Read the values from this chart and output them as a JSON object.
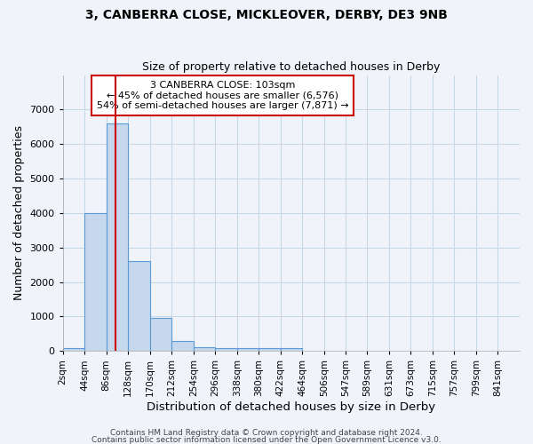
{
  "title1": "3, CANBERRA CLOSE, MICKLEOVER, DERBY, DE3 9NB",
  "title2": "Size of property relative to detached houses in Derby",
  "xlabel": "Distribution of detached houses by size in Derby",
  "ylabel": "Number of detached properties",
  "annotation_line1": "3 CANBERRA CLOSE: 103sqm",
  "annotation_line2": "← 45% of detached houses are smaller (6,576)",
  "annotation_line3": "54% of semi-detached houses are larger (7,871) →",
  "property_size_sqm": 103,
  "bin_edges": [
    2,
    44,
    86,
    128,
    170,
    212,
    254,
    296,
    338,
    380,
    422,
    464,
    506,
    547,
    589,
    631,
    673,
    715,
    757,
    799,
    841
  ],
  "bin_heights": [
    75,
    4000,
    6600,
    2620,
    960,
    300,
    115,
    80,
    80,
    90,
    90,
    0,
    0,
    0,
    0,
    0,
    0,
    0,
    0,
    0
  ],
  "bar_color": "#c5d8ed",
  "bar_edgecolor": "#5b9bd5",
  "red_line_color": "#cc0000",
  "background_color": "#f0f4fa",
  "grid_color": "#c8d8e8",
  "annotation_box_edgecolor": "#cc0000",
  "annotation_box_facecolor": "#ffffff",
  "footer_line1": "Contains HM Land Registry data © Crown copyright and database right 2024.",
  "footer_line2": "Contains public sector information licensed under the Open Government Licence v3.0.",
  "ylim": [
    0,
    8000
  ],
  "yticks": [
    0,
    1000,
    2000,
    3000,
    4000,
    5000,
    6000,
    7000,
    8000
  ]
}
